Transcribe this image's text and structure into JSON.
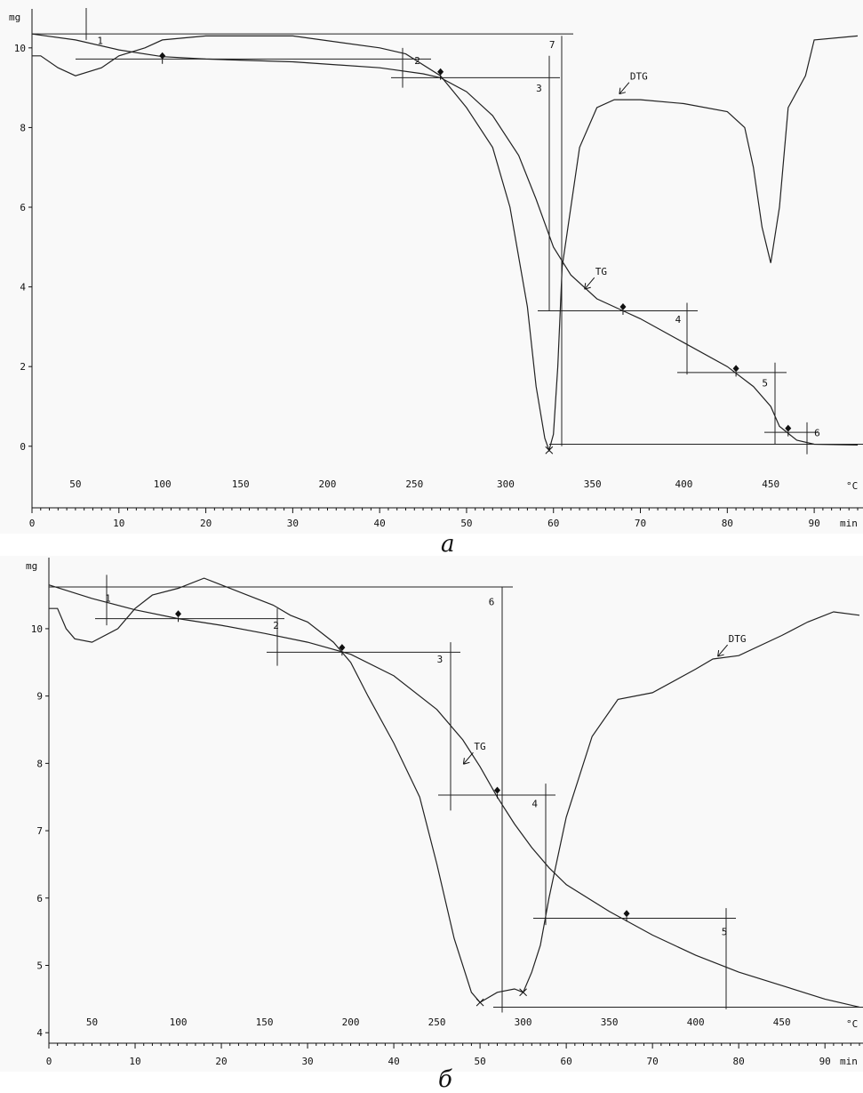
{
  "chart_data": [
    {
      "id": "a",
      "caption": "а",
      "type": "line",
      "y_unit": "mg",
      "x_unit": "min",
      "temp_unit": "°C",
      "ylim": [
        -1.3,
        10.8
      ],
      "yticks": [
        0,
        2,
        4,
        6,
        8,
        10
      ],
      "xlim": [
        0,
        95
      ],
      "xticks": [
        0,
        10,
        20,
        30,
        40,
        50,
        60,
        70,
        80,
        90
      ],
      "temp_ticks": [
        {
          "x": 5,
          "t": "50"
        },
        {
          "x": 15,
          "t": "100"
        },
        {
          "x": 24,
          "t": "150"
        },
        {
          "x": 34,
          "t": "200"
        },
        {
          "x": 44,
          "t": "250"
        },
        {
          "x": 54.5,
          "t": "300"
        },
        {
          "x": 64.5,
          "t": "350"
        },
        {
          "x": 75,
          "t": "400"
        },
        {
          "x": 85,
          "t": "450"
        }
      ],
      "series": [
        {
          "name": "TG",
          "x": [
            0,
            5,
            10,
            15,
            20,
            30,
            40,
            45,
            47,
            50,
            53,
            56,
            58,
            60,
            62,
            65,
            68,
            70,
            75,
            80,
            83,
            85,
            86,
            88,
            90,
            95
          ],
          "y": [
            10.35,
            10.2,
            9.95,
            9.78,
            9.72,
            9.65,
            9.5,
            9.35,
            9.25,
            8.9,
            8.3,
            7.3,
            6.2,
            5.0,
            4.3,
            3.7,
            3.4,
            3.2,
            2.6,
            2.0,
            1.5,
            1.0,
            0.5,
            0.15,
            0.05,
            0.03
          ],
          "label_at": {
            "x": 64.5,
            "y": 4.3
          }
        },
        {
          "name": "DTG",
          "x": [
            0,
            1,
            3,
            5,
            8,
            10,
            13,
            15,
            20,
            30,
            40,
            43,
            47,
            50,
            53,
            55,
            57,
            58,
            59,
            59.5,
            60,
            60.5,
            61,
            63,
            65,
            67,
            70,
            75,
            80,
            82,
            83,
            84,
            85,
            86,
            87,
            89,
            90,
            95
          ],
          "y": [
            9.8,
            9.8,
            9.5,
            9.3,
            9.5,
            9.8,
            10.0,
            10.2,
            10.3,
            10.3,
            10.0,
            9.85,
            9.3,
            8.5,
            7.5,
            6.0,
            3.5,
            1.5,
            0.2,
            -0.1,
            0.3,
            2.0,
            4.5,
            7.5,
            8.5,
            8.7,
            8.7,
            8.6,
            8.4,
            8.0,
            7.0,
            5.5,
            4.6,
            6.0,
            8.5,
            9.3,
            10.2,
            10.3
          ],
          "label_at": {
            "x": 68.5,
            "y": 9.2
          }
        }
      ],
      "markers": [
        {
          "x": 15,
          "y": 9.8
        },
        {
          "x": 47,
          "y": 9.4
        },
        {
          "x": 68,
          "y": 3.5
        },
        {
          "x": 81,
          "y": 1.95
        },
        {
          "x": 87,
          "y": 0.45
        }
      ],
      "step_labels": [
        {
          "x": 7.5,
          "y": 10.1,
          "t": "1"
        },
        {
          "x": 44,
          "y": 9.6,
          "t": "2"
        },
        {
          "x": 58,
          "y": 8.9,
          "t": "3"
        },
        {
          "x": 74,
          "y": 3.1,
          "t": "4"
        },
        {
          "x": 84,
          "y": 1.5,
          "t": "5"
        },
        {
          "x": 90,
          "y": 0.25,
          "t": "6"
        },
        {
          "x": 59.5,
          "y": 10.0,
          "t": "7"
        }
      ]
    },
    {
      "id": "b",
      "caption": "б",
      "type": "line",
      "y_unit": "mg",
      "x_unit": "min",
      "temp_unit": "°C",
      "ylim": [
        3.95,
        10.95
      ],
      "yticks": [
        4,
        5,
        6,
        7,
        8,
        9,
        10
      ],
      "xlim": [
        0,
        94
      ],
      "xticks": [
        0,
        10,
        20,
        30,
        40,
        50,
        60,
        70,
        80,
        90
      ],
      "temp_ticks": [
        {
          "x": 5,
          "t": "50"
        },
        {
          "x": 15,
          "t": "100"
        },
        {
          "x": 25,
          "t": "150"
        },
        {
          "x": 35,
          "t": "200"
        },
        {
          "x": 45,
          "t": "250"
        },
        {
          "x": 55,
          "t": "300"
        },
        {
          "x": 65,
          "t": "350"
        },
        {
          "x": 75,
          "t": "400"
        },
        {
          "x": 85,
          "t": "450"
        }
      ],
      "series": [
        {
          "name": "TG",
          "x": [
            0,
            5,
            10,
            15,
            20,
            25,
            30,
            35,
            40,
            45,
            48,
            50,
            52,
            54,
            56,
            58,
            60,
            65,
            70,
            75,
            80,
            85,
            90,
            94
          ],
          "y": [
            10.65,
            10.45,
            10.28,
            10.15,
            10.05,
            9.93,
            9.8,
            9.62,
            9.3,
            8.8,
            8.35,
            7.95,
            7.5,
            7.1,
            6.75,
            6.45,
            6.2,
            5.8,
            5.45,
            5.15,
            4.9,
            4.7,
            4.5,
            4.38
          ],
          "label_at": {
            "x": 49,
            "y": 8.2
          }
        },
        {
          "name": "DTG",
          "x": [
            0,
            1,
            2,
            3,
            5,
            8,
            10,
            12,
            15,
            18,
            20,
            23,
            26,
            28,
            30,
            33,
            35,
            37,
            40,
            43,
            45,
            47,
            49,
            50,
            52,
            54,
            55,
            56,
            57,
            58,
            60,
            63,
            66,
            70,
            75,
            77,
            80,
            85,
            88,
            91,
            94
          ],
          "y": [
            10.3,
            10.3,
            10.0,
            9.85,
            9.8,
            10.0,
            10.3,
            10.5,
            10.6,
            10.75,
            10.65,
            10.5,
            10.35,
            10.2,
            10.1,
            9.8,
            9.5,
            9.0,
            8.3,
            7.5,
            6.5,
            5.4,
            4.6,
            4.45,
            4.6,
            4.65,
            4.6,
            4.9,
            5.3,
            6.0,
            7.2,
            8.4,
            8.95,
            9.05,
            9.4,
            9.55,
            9.6,
            9.9,
            10.1,
            10.25,
            10.2
          ],
          "label_at": {
            "x": 78.5,
            "y": 9.8
          }
        }
      ],
      "markers": [
        {
          "x": 15,
          "y": 10.22
        },
        {
          "x": 34,
          "y": 9.72
        },
        {
          "x": 52,
          "y": 7.6
        },
        {
          "x": 67,
          "y": 5.77
        }
      ],
      "step_labels": [
        {
          "x": 6.5,
          "y": 10.4,
          "t": "1"
        },
        {
          "x": 26,
          "y": 10.0,
          "t": "2"
        },
        {
          "x": 45,
          "y": 9.5,
          "t": "3"
        },
        {
          "x": 56,
          "y": 7.35,
          "t": "4"
        },
        {
          "x": 78,
          "y": 5.45,
          "t": "5"
        },
        {
          "x": 51,
          "y": 10.35,
          "t": "6"
        }
      ]
    }
  ]
}
